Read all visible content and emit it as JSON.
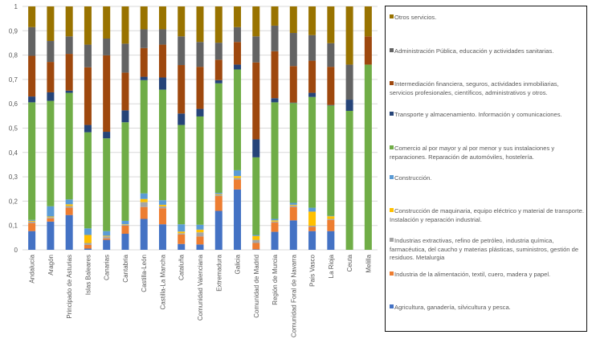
{
  "chart_data": {
    "type": "bar",
    "stacked": true,
    "ylim": [
      0,
      1
    ],
    "yticks": [
      "0",
      "0,1",
      "0,2",
      "0,3",
      "0,4",
      "0,5",
      "0,6",
      "0,7",
      "0,8",
      "0,9",
      "1"
    ],
    "grid": true,
    "legend_position": "right",
    "categories": [
      "Andalucía",
      "Aragón",
      "Principado de Asturias",
      "Islas Baleares",
      "Canarias",
      "Cantabria",
      "Castilla-León",
      "Castilla-La Mancha",
      "Cataluña",
      "Comunidad Valenciana",
      "Extremadura",
      "Galicia",
      "Comunidad de Madrid",
      "Región de Murcia",
      "Comunidad Foral de Navarra",
      "País Vasco",
      "La Rioja",
      "Ceuta",
      "Melilla"
    ],
    "series": [
      {
        "name": "Agricultura, ganadería, silvicultura y pesca.",
        "color": "#4472C4",
        "values": [
          0.077,
          0.116,
          0.143,
          0.005,
          0.041,
          0.066,
          0.127,
          0.105,
          0.024,
          0.022,
          0.16,
          0.248,
          0.002,
          0.074,
          0.121,
          0.077,
          0.077,
          0,
          0
        ]
      },
      {
        "name": "Industria de la alimentación, textil, cuero, madera y papel.",
        "color": "#ED7D31",
        "values": [
          0.033,
          0.013,
          0.03,
          0.015,
          0.006,
          0.033,
          0.049,
          0.066,
          0.039,
          0.033,
          0.061,
          0.041,
          0.026,
          0.038,
          0.055,
          0.017,
          0.046,
          0,
          0
        ]
      },
      {
        "name": "Industrias extractivas, refino de petróleo, industria química, farmacéutica, del caucho y materias plásticas, suministros, gestión de residuos. Metalurgia",
        "color": "#A5A5A5",
        "values": [
          0.006,
          0.005,
          0.007,
          0.008,
          0.008,
          0.004,
          0.02,
          0.008,
          0.005,
          0.017,
          0.005,
          0.006,
          0.013,
          0.004,
          0.006,
          0.005,
          0.004,
          0,
          0
        ]
      },
      {
        "name": "Construcción de maquinaria, equipo eléctrico y material de transporte. Instalación y reparación industrial.",
        "color": "#FFC000",
        "values": [
          0.003,
          0.003,
          0.007,
          0.033,
          0.003,
          0.002,
          0.013,
          0.006,
          0.007,
          0.011,
          0.003,
          0.008,
          0.016,
          0.005,
          0.003,
          0.058,
          0.011,
          0,
          0
        ]
      },
      {
        "name": "Construcción.",
        "color": "#5B9BD5",
        "values": [
          0.004,
          0.042,
          0.02,
          0.027,
          0.019,
          0.014,
          0.023,
          0.019,
          0.03,
          0.02,
          0.005,
          0.024,
          0.004,
          0.006,
          0.008,
          0.016,
          0.002,
          0,
          0
        ]
      },
      {
        "name": "Comercio al por mayor y al por menor y sus instalaciones y reparaciones. Reparación de automóviles, hostelería.",
        "color": "#70AD47",
        "values": [
          0.483,
          0.433,
          0.438,
          0.395,
          0.381,
          0.405,
          0.465,
          0.454,
          0.408,
          0.445,
          0.45,
          0.414,
          0.319,
          0.479,
          0.41,
          0.455,
          0.453,
          0.571,
          0.761
        ]
      },
      {
        "name": "Transporte y almacenamiento. Información y comunicaciones.",
        "color": "#264478",
        "values": [
          0.024,
          0.035,
          0.009,
          0.03,
          0.027,
          0.049,
          0.014,
          0.05,
          0.047,
          0.031,
          0.013,
          0.02,
          0.074,
          0.017,
          0.002,
          0.017,
          0.002,
          0.046,
          0
        ]
      },
      {
        "name": "Intermediación financiera, seguros, actividades inmobiliarias, servicios profesionales, científicos, administrativos y otros.",
        "color": "#9E480E",
        "values": [
          0.167,
          0.125,
          0.151,
          0.237,
          0.314,
          0.155,
          0.118,
          0.135,
          0.199,
          0.173,
          0.084,
          0.093,
          0.316,
          0.193,
          0.15,
          0.132,
          0.157,
          0,
          0.116
        ]
      },
      {
        "name": "Administración Pública, educación y actividades sanitarias.",
        "color": "#636363",
        "values": [
          0.118,
          0.086,
          0.072,
          0.093,
          0.069,
          0.119,
          0.077,
          0.063,
          0.118,
          0.102,
          0.07,
          0.061,
          0.107,
          0.105,
          0.136,
          0.105,
          0.097,
          0.144,
          0
        ]
      },
      {
        "name": "Otros servicios.",
        "color": "#997300",
        "values": [
          0.085,
          0.142,
          0.123,
          0.157,
          0.132,
          0.153,
          0.094,
          0.094,
          0.123,
          0.146,
          0.149,
          0.085,
          0.123,
          0.079,
          0.109,
          0.118,
          0.151,
          0.239,
          0.123
        ]
      }
    ]
  }
}
